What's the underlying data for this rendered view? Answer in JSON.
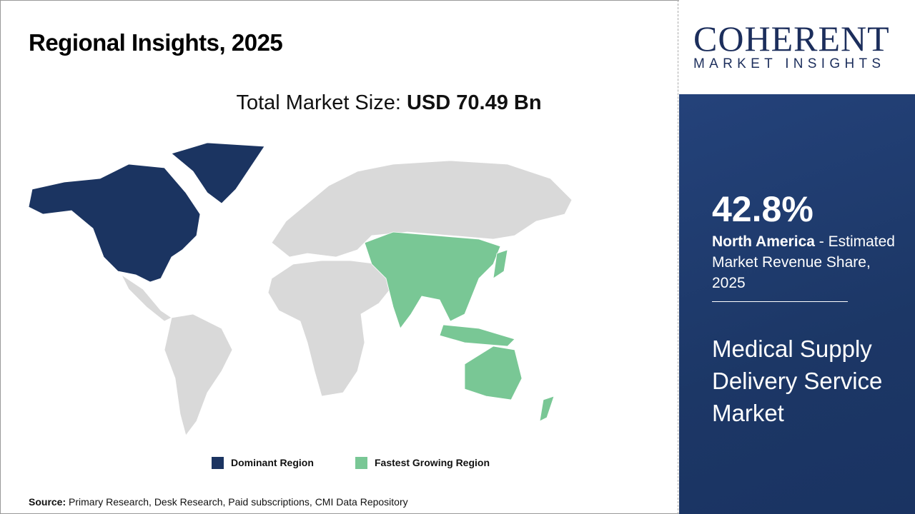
{
  "header": {
    "title": "Regional Insights, 2025",
    "total_label": "Total Market Size:",
    "total_value": "USD 70.49 Bn"
  },
  "logo": {
    "name": "COHERENT",
    "tagline": "MARKET INSIGHTS"
  },
  "panel": {
    "percent": "42.8%",
    "region": "North America",
    "region_suffix": " - Estimated Market Revenue Share, 2025",
    "market_name": "Medical Supply Delivery Service Market"
  },
  "legend": [
    {
      "label": "Dominant Region",
      "color": "#1b3461"
    },
    {
      "label": "Fastest Growing Region",
      "color": "#79c795"
    }
  ],
  "map": {
    "dominant_region": "North America",
    "fastest_growing_region": "Asia Pacific",
    "other_color": "#d9d9d9"
  },
  "source": {
    "label": "Source:",
    "text": " Primary Research, Desk Research, Paid subscriptions, CMI Data Repository"
  }
}
